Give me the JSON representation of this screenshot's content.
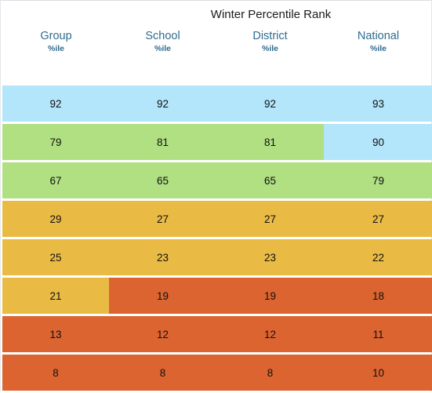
{
  "header": {
    "title": "Winter Percentile Rank",
    "columns": [
      {
        "name": "Group",
        "unit": "%ile"
      },
      {
        "name": "School",
        "unit": "%ile"
      },
      {
        "name": "District",
        "unit": "%ile"
      },
      {
        "name": "National",
        "unit": "%ile"
      }
    ]
  },
  "colors": {
    "blue": "#b3e5fb",
    "green": "#b0e082",
    "yellow": "#e9bb45",
    "orange": "#dc6430"
  },
  "rows": [
    {
      "values": [
        "92",
        "92",
        "92",
        "93"
      ],
      "bands": [
        "blue",
        "blue",
        "blue",
        "blue"
      ]
    },
    {
      "values": [
        "79",
        "81",
        "81",
        "90"
      ],
      "bands": [
        "green",
        "green",
        "green",
        "blue"
      ]
    },
    {
      "values": [
        "67",
        "65",
        "65",
        "79"
      ],
      "bands": [
        "green",
        "green",
        "green",
        "green"
      ]
    },
    {
      "values": [
        "29",
        "27",
        "27",
        "27"
      ],
      "bands": [
        "yellow",
        "yellow",
        "yellow",
        "yellow"
      ]
    },
    {
      "values": [
        "25",
        "23",
        "23",
        "22"
      ],
      "bands": [
        "yellow",
        "yellow",
        "yellow",
        "yellow"
      ]
    },
    {
      "values": [
        "21",
        "19",
        "19",
        "18"
      ],
      "bands": [
        "yellow",
        "orange",
        "orange",
        "orange"
      ]
    },
    {
      "values": [
        "13",
        "12",
        "12",
        "11"
      ],
      "bands": [
        "orange",
        "orange",
        "orange",
        "orange"
      ]
    },
    {
      "values": [
        "8",
        "8",
        "8",
        "10"
      ],
      "bands": [
        "orange",
        "orange",
        "orange",
        "orange"
      ]
    }
  ]
}
